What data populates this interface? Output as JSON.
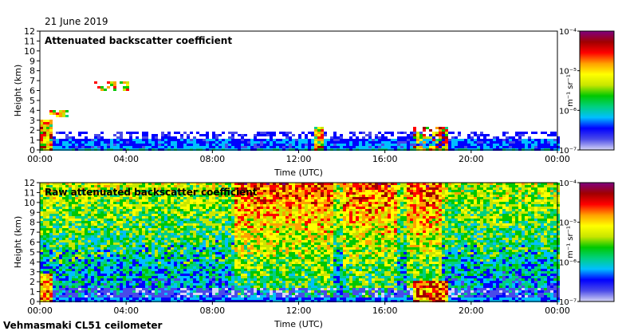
{
  "header": {
    "date": "21 June 2019"
  },
  "footer": {
    "instrument": "Vehmasmaki CL51 ceilometer"
  },
  "colors": {
    "colormap": [
      "#d6d6f5",
      "#4a4ae8",
      "#0000ff",
      "#00bfff",
      "#00d080",
      "#00c800",
      "#c8e600",
      "#ffff00",
      "#ffa000",
      "#ff0000",
      "#a00000",
      "#800080"
    ]
  },
  "chart_data": [
    {
      "type": "heatmap",
      "title": "Attenuated backscatter coefficient",
      "xlabel": "Time (UTC)",
      "ylabel": "Height (km)",
      "xticks": [
        "00:00",
        "04:00",
        "08:00",
        "12:00",
        "16:00",
        "20:00",
        "00:00"
      ],
      "xlim_hours": [
        0,
        24
      ],
      "yticks": [
        0,
        1,
        2,
        3,
        4,
        5,
        6,
        7,
        8,
        9,
        10,
        11,
        12
      ],
      "ylim": [
        0,
        12
      ],
      "colorbar": {
        "label": "m⁻¹ sr⁻¹",
        "scale": "log",
        "ticks": [
          "10⁻⁴",
          "10⁻⁵",
          "10⁻⁶",
          "10⁻⁷"
        ],
        "range": [
          1e-07,
          0.0001
        ]
      }
    },
    {
      "type": "heatmap",
      "title": "Raw attenuated backscatter coefficient",
      "xlabel": "Time (UTC)",
      "ylabel": "Height (km)",
      "xticks": [
        "00:00",
        "04:00",
        "08:00",
        "12:00",
        "16:00",
        "20:00",
        "00:00"
      ],
      "xlim_hours": [
        0,
        24
      ],
      "yticks": [
        0,
        1,
        2,
        3,
        4,
        5,
        6,
        7,
        8,
        9,
        10,
        11,
        12
      ],
      "ylim": [
        0,
        12
      ],
      "colorbar": {
        "label": "m⁻¹ sr⁻¹",
        "scale": "log",
        "ticks": [
          "10⁻⁴",
          "10⁻⁵",
          "10⁻⁶",
          "10⁻⁷"
        ],
        "range": [
          1e-07,
          0.0001
        ]
      }
    }
  ]
}
